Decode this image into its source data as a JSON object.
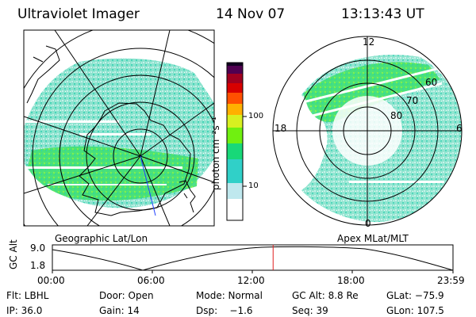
{
  "header": {
    "instrument": "Ultraviolet Imager",
    "date": "14 Nov 07",
    "time": "13:13:43 UT"
  },
  "colorbar": {
    "unit_label": "photon cm⁻²s⁻¹",
    "tick_100": "100",
    "tick_10": "10",
    "colors": [
      "#ffffff",
      "#bfe8ee",
      "#30d0c8",
      "#18d878",
      "#70f010",
      "#d8f020",
      "#ffb000",
      "#ff5000",
      "#e00000",
      "#a00020",
      "#500050",
      "#100020"
    ]
  },
  "left_map": {
    "caption": "Geographic Lat/Lon"
  },
  "right_map": {
    "caption": "Apex MLat/MLT",
    "mlt_labels": {
      "top": "12",
      "bottom": "0",
      "left": "18",
      "right": "6"
    },
    "lat_labels": [
      "60",
      "70",
      "80"
    ]
  },
  "timeline": {
    "ylabel": "GC Alt",
    "y_top": "9.0",
    "y_bottom": "1.8",
    "x_ticks": [
      "00:00",
      "06:00",
      "12:00",
      "18:00",
      "23:59"
    ],
    "current_time_fraction": 0.551
  },
  "info": {
    "row1": [
      "Flt: LBHL",
      "Door: Open",
      "Mode: Normal",
      "GC Alt: 8.8 Re",
      "GLat: −75.9"
    ],
    "row2": [
      "IP: 36.0",
      "Gain: 14",
      "Dsp:    −1.6",
      "Seq: 39",
      "GLon: 107.5"
    ]
  }
}
